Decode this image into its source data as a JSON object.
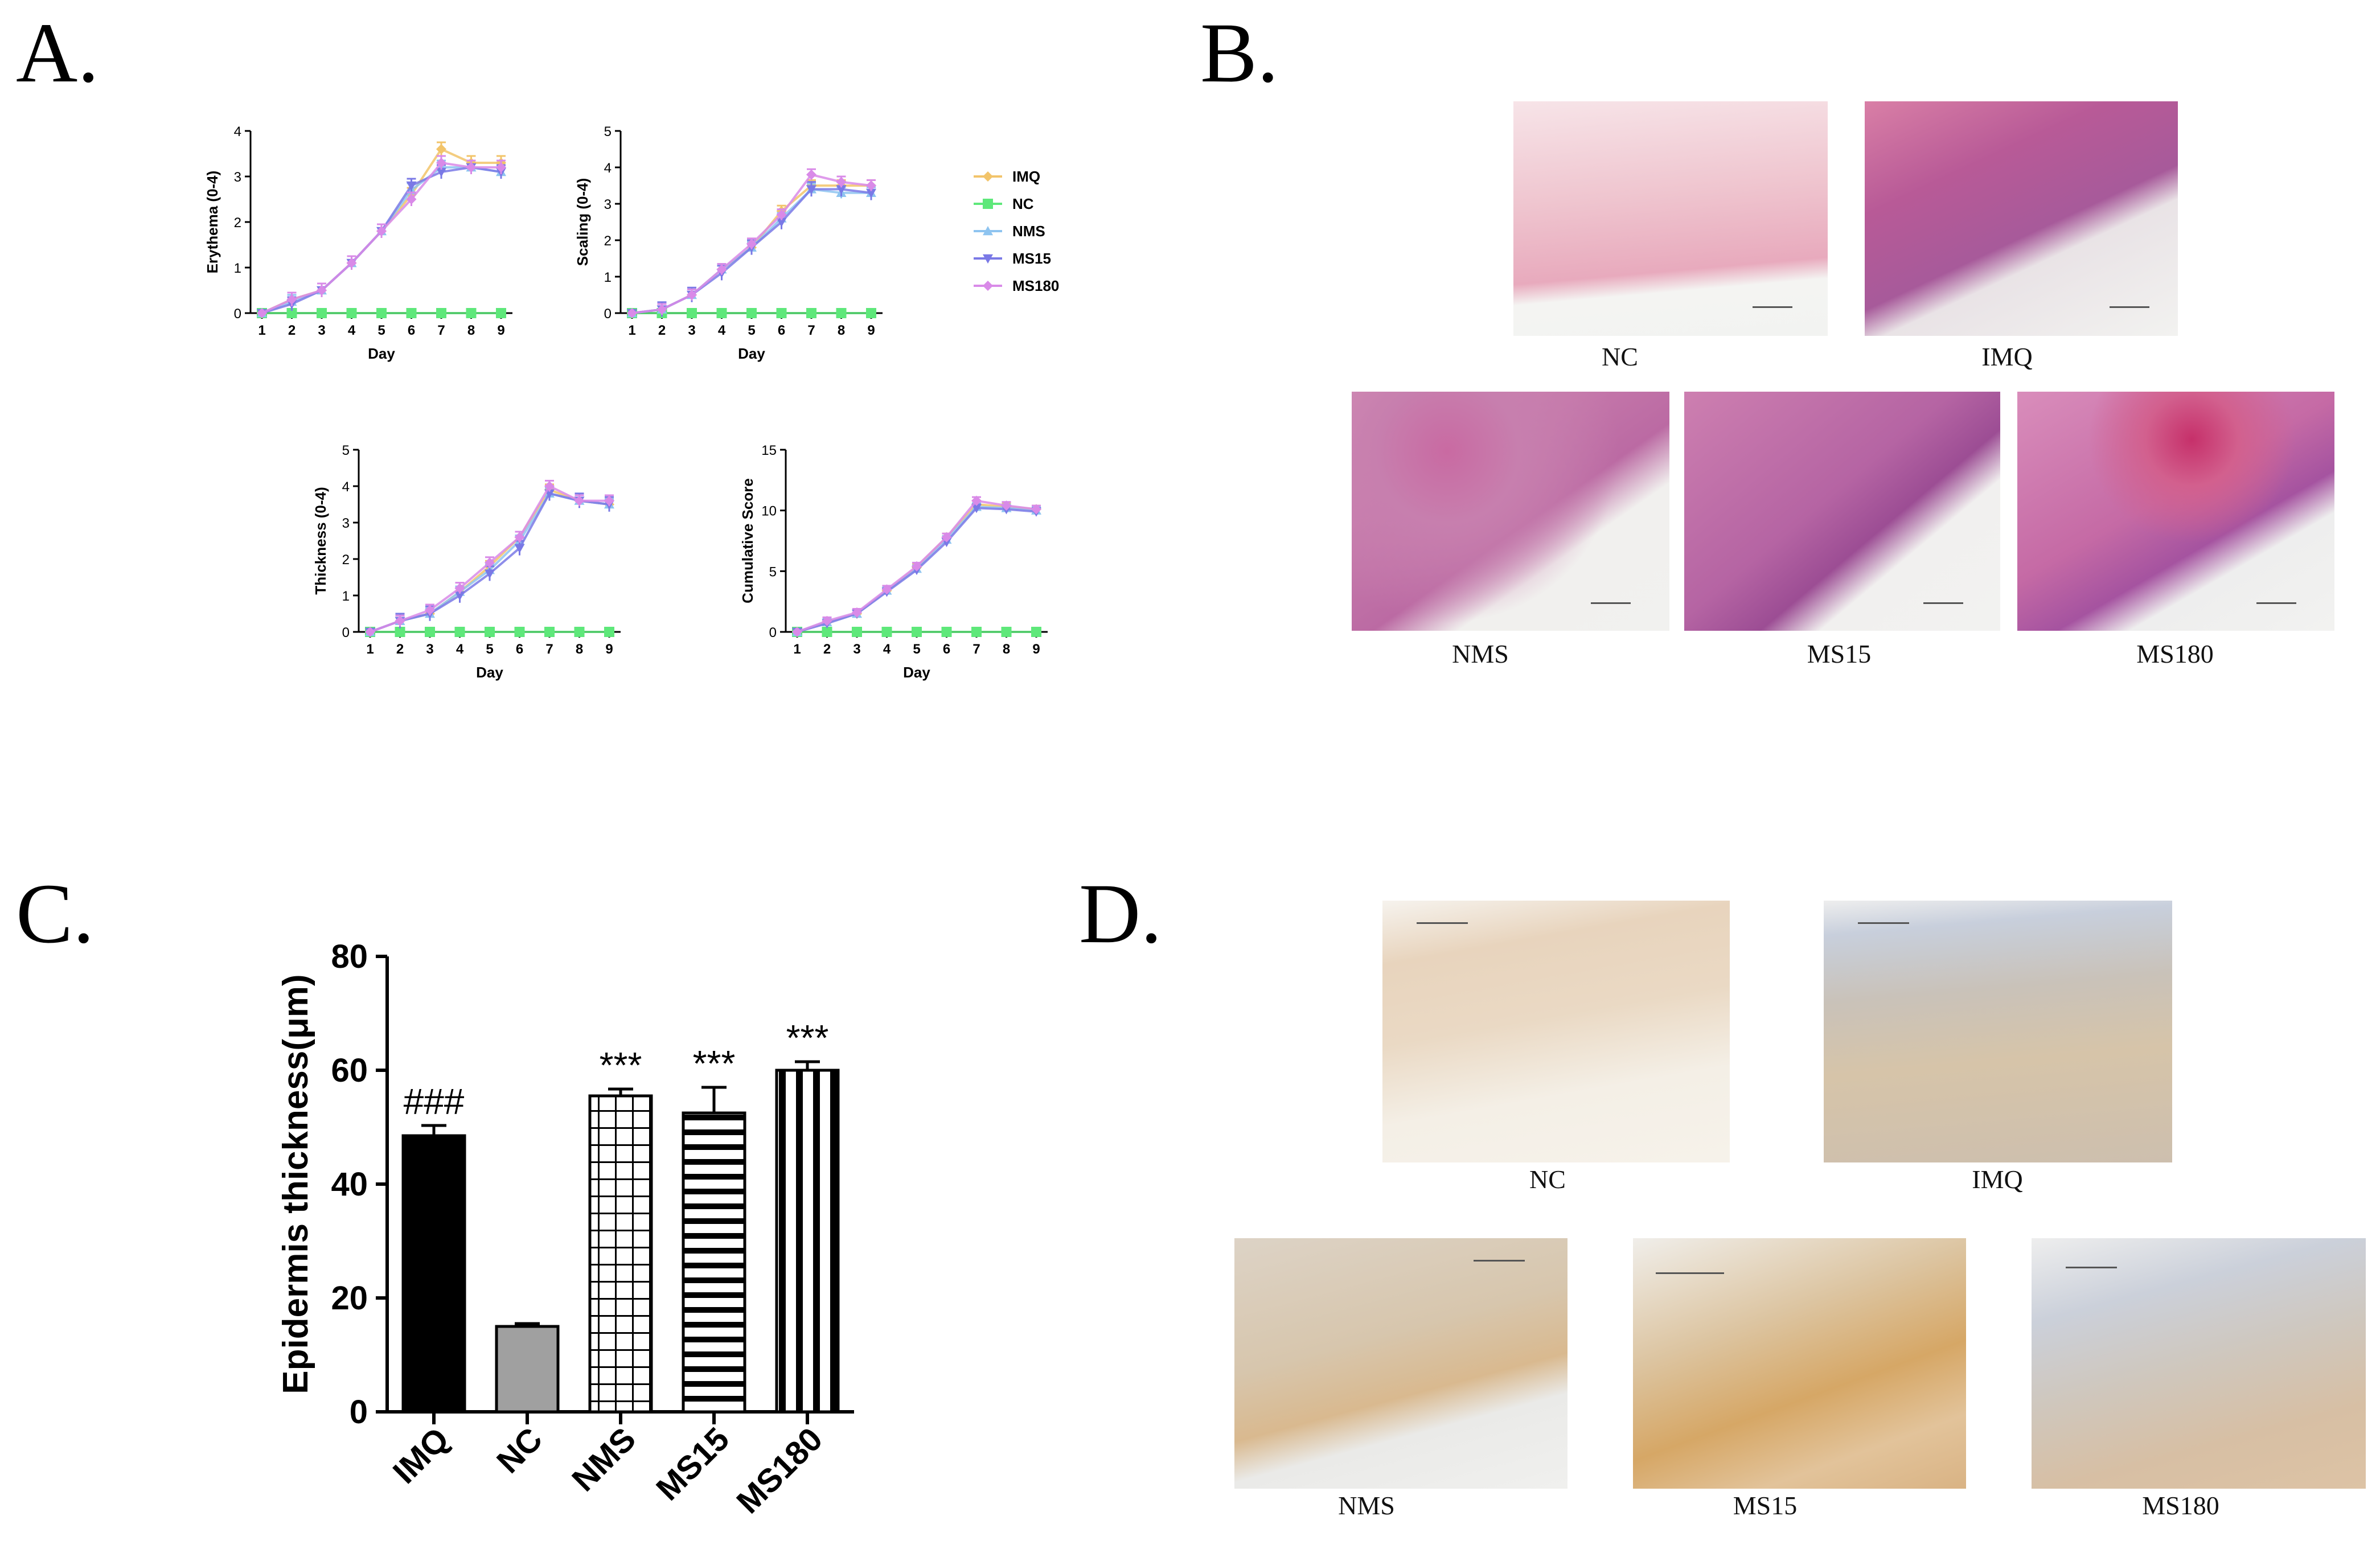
{
  "panels": {
    "a": "A.",
    "b": "B.",
    "c": "C.",
    "d": "D."
  },
  "colors": {
    "IMQ": "#f2c46a",
    "NC": "#5ee87a",
    "NMS": "#8ec4f0",
    "MS15": "#7a79e6",
    "MS180": "#d98ae8"
  },
  "legend": [
    "IMQ",
    "NC",
    "NMS",
    "MS15",
    "MS180"
  ],
  "chart_data": [
    {
      "type": "line",
      "ylabel": "Erythema (0-4)",
      "xlabel": "Day",
      "x": [
        1,
        2,
        3,
        4,
        5,
        6,
        7,
        8,
        9
      ],
      "ylim": [
        0,
        4
      ],
      "yticks": [
        0,
        1,
        2,
        3,
        4
      ],
      "series": [
        {
          "name": "IMQ",
          "values": [
            0,
            0.3,
            0.5,
            1.1,
            1.8,
            2.6,
            3.6,
            3.3,
            3.3
          ],
          "err": 0.15
        },
        {
          "name": "NC",
          "values": [
            0,
            0,
            0,
            0,
            0,
            0,
            0,
            0,
            0
          ],
          "err": 0
        },
        {
          "name": "NMS",
          "values": [
            0,
            0.25,
            0.5,
            1.1,
            1.8,
            2.7,
            3.2,
            3.2,
            3.1
          ],
          "err": 0.15
        },
        {
          "name": "MS15",
          "values": [
            0,
            0.2,
            0.5,
            1.1,
            1.8,
            2.8,
            3.1,
            3.2,
            3.1
          ],
          "err": 0.15
        },
        {
          "name": "MS180",
          "values": [
            0,
            0.3,
            0.5,
            1.1,
            1.8,
            2.5,
            3.3,
            3.2,
            3.2
          ],
          "err": 0.15
        }
      ]
    },
    {
      "type": "line",
      "ylabel": "Scaling (0-4)",
      "xlabel": "Day",
      "x": [
        1,
        2,
        3,
        4,
        5,
        6,
        7,
        8,
        9
      ],
      "ylim": [
        0,
        5
      ],
      "yticks": [
        0,
        1,
        2,
        3,
        4,
        5
      ],
      "series": [
        {
          "name": "IMQ",
          "values": [
            0,
            0.1,
            0.5,
            1.2,
            1.8,
            2.8,
            3.5,
            3.5,
            3.5
          ],
          "err": 0.15
        },
        {
          "name": "NC",
          "values": [
            0,
            0,
            0,
            0,
            0,
            0,
            0,
            0,
            0
          ],
          "err": 0
        },
        {
          "name": "NMS",
          "values": [
            0,
            0.1,
            0.5,
            1.2,
            1.8,
            2.6,
            3.4,
            3.3,
            3.3
          ],
          "err": 0.15
        },
        {
          "name": "MS15",
          "values": [
            0,
            0.1,
            0.5,
            1.1,
            1.8,
            2.5,
            3.4,
            3.4,
            3.3
          ],
          "err": 0.2
        },
        {
          "name": "MS180",
          "values": [
            0,
            0.1,
            0.5,
            1.2,
            1.9,
            2.7,
            3.8,
            3.6,
            3.5
          ],
          "err": 0.15
        }
      ]
    },
    {
      "type": "line",
      "ylabel": "Thickness (0-4)",
      "xlabel": "Day",
      "x": [
        1,
        2,
        3,
        4,
        5,
        6,
        7,
        8,
        9
      ],
      "ylim": [
        0,
        5
      ],
      "yticks": [
        0,
        1,
        2,
        3,
        4,
        5
      ],
      "series": [
        {
          "name": "IMQ",
          "values": [
            0,
            0.3,
            0.5,
            1.1,
            1.8,
            2.6,
            3.9,
            3.6,
            3.5
          ],
          "err": 0.15
        },
        {
          "name": "NC",
          "values": [
            0,
            0,
            0,
            0,
            0,
            0,
            0,
            0,
            0
          ],
          "err": 0
        },
        {
          "name": "NMS",
          "values": [
            0,
            0.3,
            0.5,
            1.1,
            1.7,
            2.5,
            3.8,
            3.6,
            3.5
          ],
          "err": 0.15
        },
        {
          "name": "MS15",
          "values": [
            0,
            0.3,
            0.5,
            1.0,
            1.6,
            2.3,
            3.8,
            3.6,
            3.5
          ],
          "err": 0.2
        },
        {
          "name": "MS180",
          "values": [
            0,
            0.3,
            0.6,
            1.2,
            1.9,
            2.6,
            4.0,
            3.6,
            3.6
          ],
          "err": 0.15
        }
      ]
    },
    {
      "type": "line",
      "ylabel": "Cumulative Score",
      "xlabel": "Day",
      "x": [
        1,
        2,
        3,
        4,
        5,
        6,
        7,
        8,
        9
      ],
      "ylim": [
        0,
        15
      ],
      "yticks": [
        0,
        5,
        10,
        15
      ],
      "series": [
        {
          "name": "IMQ",
          "values": [
            0,
            0.8,
            1.5,
            3.4,
            5.3,
            7.8,
            10.5,
            10.3,
            10.1
          ],
          "err": 0.3
        },
        {
          "name": "NC",
          "values": [
            0,
            0,
            0,
            0,
            0,
            0,
            0,
            0,
            0
          ],
          "err": 0
        },
        {
          "name": "NMS",
          "values": [
            0,
            0.8,
            1.5,
            3.4,
            5.2,
            7.6,
            10.3,
            10.2,
            10.0
          ],
          "err": 0.3
        },
        {
          "name": "MS15",
          "values": [
            0,
            0.7,
            1.5,
            3.3,
            5.1,
            7.4,
            10.2,
            10.1,
            9.9
          ],
          "err": 0.3
        },
        {
          "name": "MS180",
          "values": [
            0,
            0.9,
            1.6,
            3.5,
            5.4,
            7.8,
            10.8,
            10.4,
            10.1
          ],
          "err": 0.3
        }
      ]
    },
    {
      "type": "bar",
      "ylabel": "Epidermis thickness(μm)",
      "categories": [
        "IMQ",
        "NC",
        "NMS",
        "MS15",
        "MS180"
      ],
      "values": [
        48.5,
        15,
        55.5,
        52.5,
        60
      ],
      "errors": [
        1.8,
        0.5,
        1.2,
        4.5,
        1.5
      ],
      "ylim": [
        0,
        80
      ],
      "yticks": [
        0,
        20,
        40,
        60,
        80
      ],
      "annotations": [
        "###",
        "",
        "***",
        "***",
        "***"
      ]
    }
  ],
  "panel_b": {
    "labels": [
      "NC",
      "IMQ",
      "NMS",
      "MS15",
      "MS180"
    ]
  },
  "panel_d": {
    "labels": [
      "NC",
      "IMQ",
      "NMS",
      "MS15",
      "MS180"
    ]
  }
}
